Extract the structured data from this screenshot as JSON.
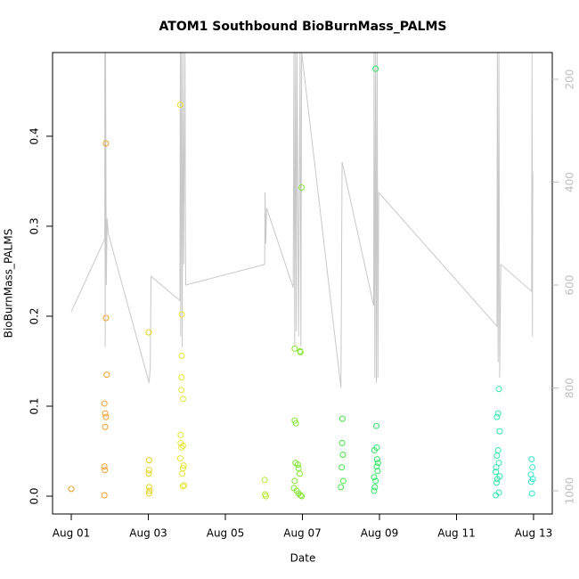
{
  "chart_data": {
    "type": "scatter",
    "title": "ATOM1 Southbound BioBurnMass_PALMS",
    "xlabel": "Date",
    "ylabel": "BioBurnMass_PALMS",
    "xlim": [
      0.514,
      13.486
    ],
    "xticks": [
      {
        "value": 1,
        "label": "Aug 01"
      },
      {
        "value": 3,
        "label": "Aug 03"
      },
      {
        "value": 5,
        "label": "Aug 05"
      },
      {
        "value": 7,
        "label": "Aug 07"
      },
      {
        "value": 9,
        "label": "Aug 09"
      },
      {
        "value": 11,
        "label": "Aug 11"
      },
      {
        "value": 13,
        "label": "Aug 13"
      }
    ],
    "ylim": [
      -0.0198,
      0.493
    ],
    "yticks": [
      {
        "value": 0,
        "label": "0.0"
      },
      0.1,
      0.2,
      0.3,
      0.4
    ],
    "y2lim": [
      1045,
      148
    ],
    "y2ticks": [
      200,
      400,
      600,
      800,
      1000
    ],
    "y2color": "#bebebe",
    "series": [
      {
        "type": "line",
        "axis": "y2",
        "color": "#c8c8c8",
        "x": [
          1.0,
          1.87,
          1.87,
          1.88,
          1.89,
          1.91,
          1.93,
          1.96,
          3.02,
          3.05,
          3.07,
          3.82,
          3.83,
          3.84,
          3.86,
          3.88,
          3.9,
          3.92,
          3.95,
          3.97,
          6.02,
          6.03,
          6.05,
          6.07,
          6.76,
          6.78,
          6.8,
          6.82,
          6.84,
          6.86,
          6.9,
          6.94,
          6.96,
          6.98,
          8.0,
          8.03,
          8.85,
          8.86,
          8.88,
          8.9,
          8.92,
          8.94,
          8.96,
          8.98,
          12.05,
          12.06,
          12.08,
          12.1,
          12.12,
          12.15,
          12.95,
          12.96,
          12.97,
          12.98
        ],
        "values": [
          652,
          510,
          148,
          720,
          148,
          600,
          470,
          500,
          790,
          760,
          583,
          630,
          148,
          700,
          148,
          720,
          148,
          560,
          148,
          600,
          560,
          420,
          520,
          450,
          605,
          148,
          720,
          148,
          690,
          148,
          700,
          148,
          720,
          148,
          800,
          361,
          640,
          148,
          780,
          148,
          790,
          148,
          780,
          420,
          680,
          148,
          750,
          148,
          780,
          560,
          612,
          148,
          700,
          380
        ]
      },
      {
        "color": "#f0961e",
        "x": [
          1.0
        ],
        "values": [
          0.008
        ]
      },
      {
        "color": "#f0a02a",
        "x": [
          1.9,
          1.9,
          1.92,
          1.86,
          1.88,
          1.9,
          1.88,
          1.86,
          1.87,
          1.86
        ],
        "values": [
          0.392,
          0.198,
          0.135,
          0.103,
          0.092,
          0.088,
          0.077,
          0.033,
          0.029,
          0.001
        ]
      },
      {
        "color": "#e6d21e",
        "x": [
          3.01,
          3.02,
          3.02,
          3.01,
          3.02,
          3.03,
          3.02
        ],
        "values": [
          0.182,
          0.04,
          0.029,
          0.025,
          0.01,
          0.006,
          0.003
        ]
      },
      {
        "color": "#e6e632",
        "x": [
          3.83,
          3.87,
          3.87,
          3.86,
          3.86,
          3.9,
          3.84,
          3.84,
          3.9,
          3.86,
          3.83,
          3.92,
          3.9,
          3.88,
          3.93,
          3.9
        ],
        "values": [
          0.435,
          0.202,
          0.156,
          0.132,
          0.118,
          0.108,
          0.068,
          0.059,
          0.056,
          0.054,
          0.042,
          0.034,
          0.031,
          0.025,
          0.012,
          0.011
        ]
      },
      {
        "color": "#b4e632",
        "x": [
          6.02,
          6.03,
          6.05
        ],
        "values": [
          0.018,
          0.002,
          0.0
        ]
      },
      {
        "color": "#82e632",
        "x": [
          6.8,
          6.94,
          6.95,
          6.98,
          6.8,
          6.83,
          6.82,
          6.88,
          6.9,
          6.93,
          6.8,
          6.78,
          6.85,
          6.9,
          6.95,
          6.98
        ],
        "values": [
          0.164,
          0.161,
          0.16,
          0.343,
          0.084,
          0.081,
          0.037,
          0.035,
          0.031,
          0.025,
          0.017,
          0.009,
          0.006,
          0.003,
          0.001,
          0.0
        ]
      },
      {
        "color": "#46e646",
        "x": [
          8.04,
          8.03,
          8.05,
          8.02,
          8.06,
          8.0
        ],
        "values": [
          0.086,
          0.059,
          0.046,
          0.032,
          0.017,
          0.01
        ]
      },
      {
        "color": "#32e664",
        "x": [
          8.9,
          8.92,
          8.93,
          8.87,
          8.94,
          8.96,
          8.93,
          8.95,
          8.86,
          8.9,
          8.88,
          8.86
        ],
        "values": [
          0.475,
          0.078,
          0.054,
          0.051,
          0.041,
          0.037,
          0.033,
          0.028,
          0.021,
          0.017,
          0.01,
          0.006
        ]
      },
      {
        "color": "#32e6aa",
        "x": [
          12.1,
          12.08,
          12.05,
          12.12,
          12.08,
          12.05,
          12.1,
          12.03,
          12.02,
          12.12,
          12.06,
          12.04,
          12.1,
          12.02
        ],
        "values": [
          0.119,
          0.092,
          0.088,
          0.072,
          0.051,
          0.045,
          0.037,
          0.032,
          0.027,
          0.022,
          0.019,
          0.015,
          0.004,
          0.001
        ]
      },
      {
        "color": "#32e6c8",
        "x": [
          12.95,
          12.97,
          12.93,
          12.98,
          12.94,
          12.96
        ],
        "values": [
          0.041,
          0.032,
          0.024,
          0.019,
          0.016,
          0.003
        ]
      }
    ]
  }
}
